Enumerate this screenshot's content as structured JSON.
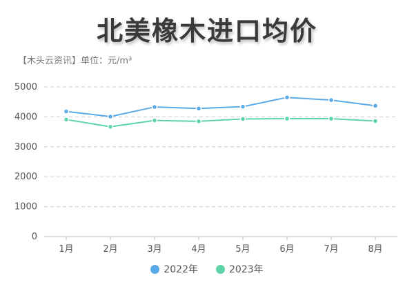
{
  "header": {
    "title": "北美橡木进口均价",
    "subtitle": "【木头云资讯】单位：元/m³"
  },
  "colors": {
    "series_2022": "#5aaae8",
    "series_2023": "#5ed3a6",
    "grid": "#cccccc",
    "axis": "#bbbbbb"
  },
  "chart_data": {
    "type": "line",
    "categories": [
      "1月",
      "2月",
      "3月",
      "4月",
      "5月",
      "6月",
      "7月",
      "8月"
    ],
    "ylim": [
      0,
      5000
    ],
    "yticks": [
      0,
      1000,
      2000,
      3000,
      4000,
      5000
    ],
    "grid": true,
    "legend_position": "bottom",
    "series": [
      {
        "name": "2022年",
        "color": "#5aaae8",
        "values": [
          4180,
          4010,
          4330,
          4280,
          4340,
          4650,
          4560,
          4370
        ]
      },
      {
        "name": "2023年",
        "color": "#5ed3a6",
        "values": [
          3910,
          3670,
          3880,
          3850,
          3930,
          3940,
          3940,
          3860
        ]
      }
    ]
  }
}
